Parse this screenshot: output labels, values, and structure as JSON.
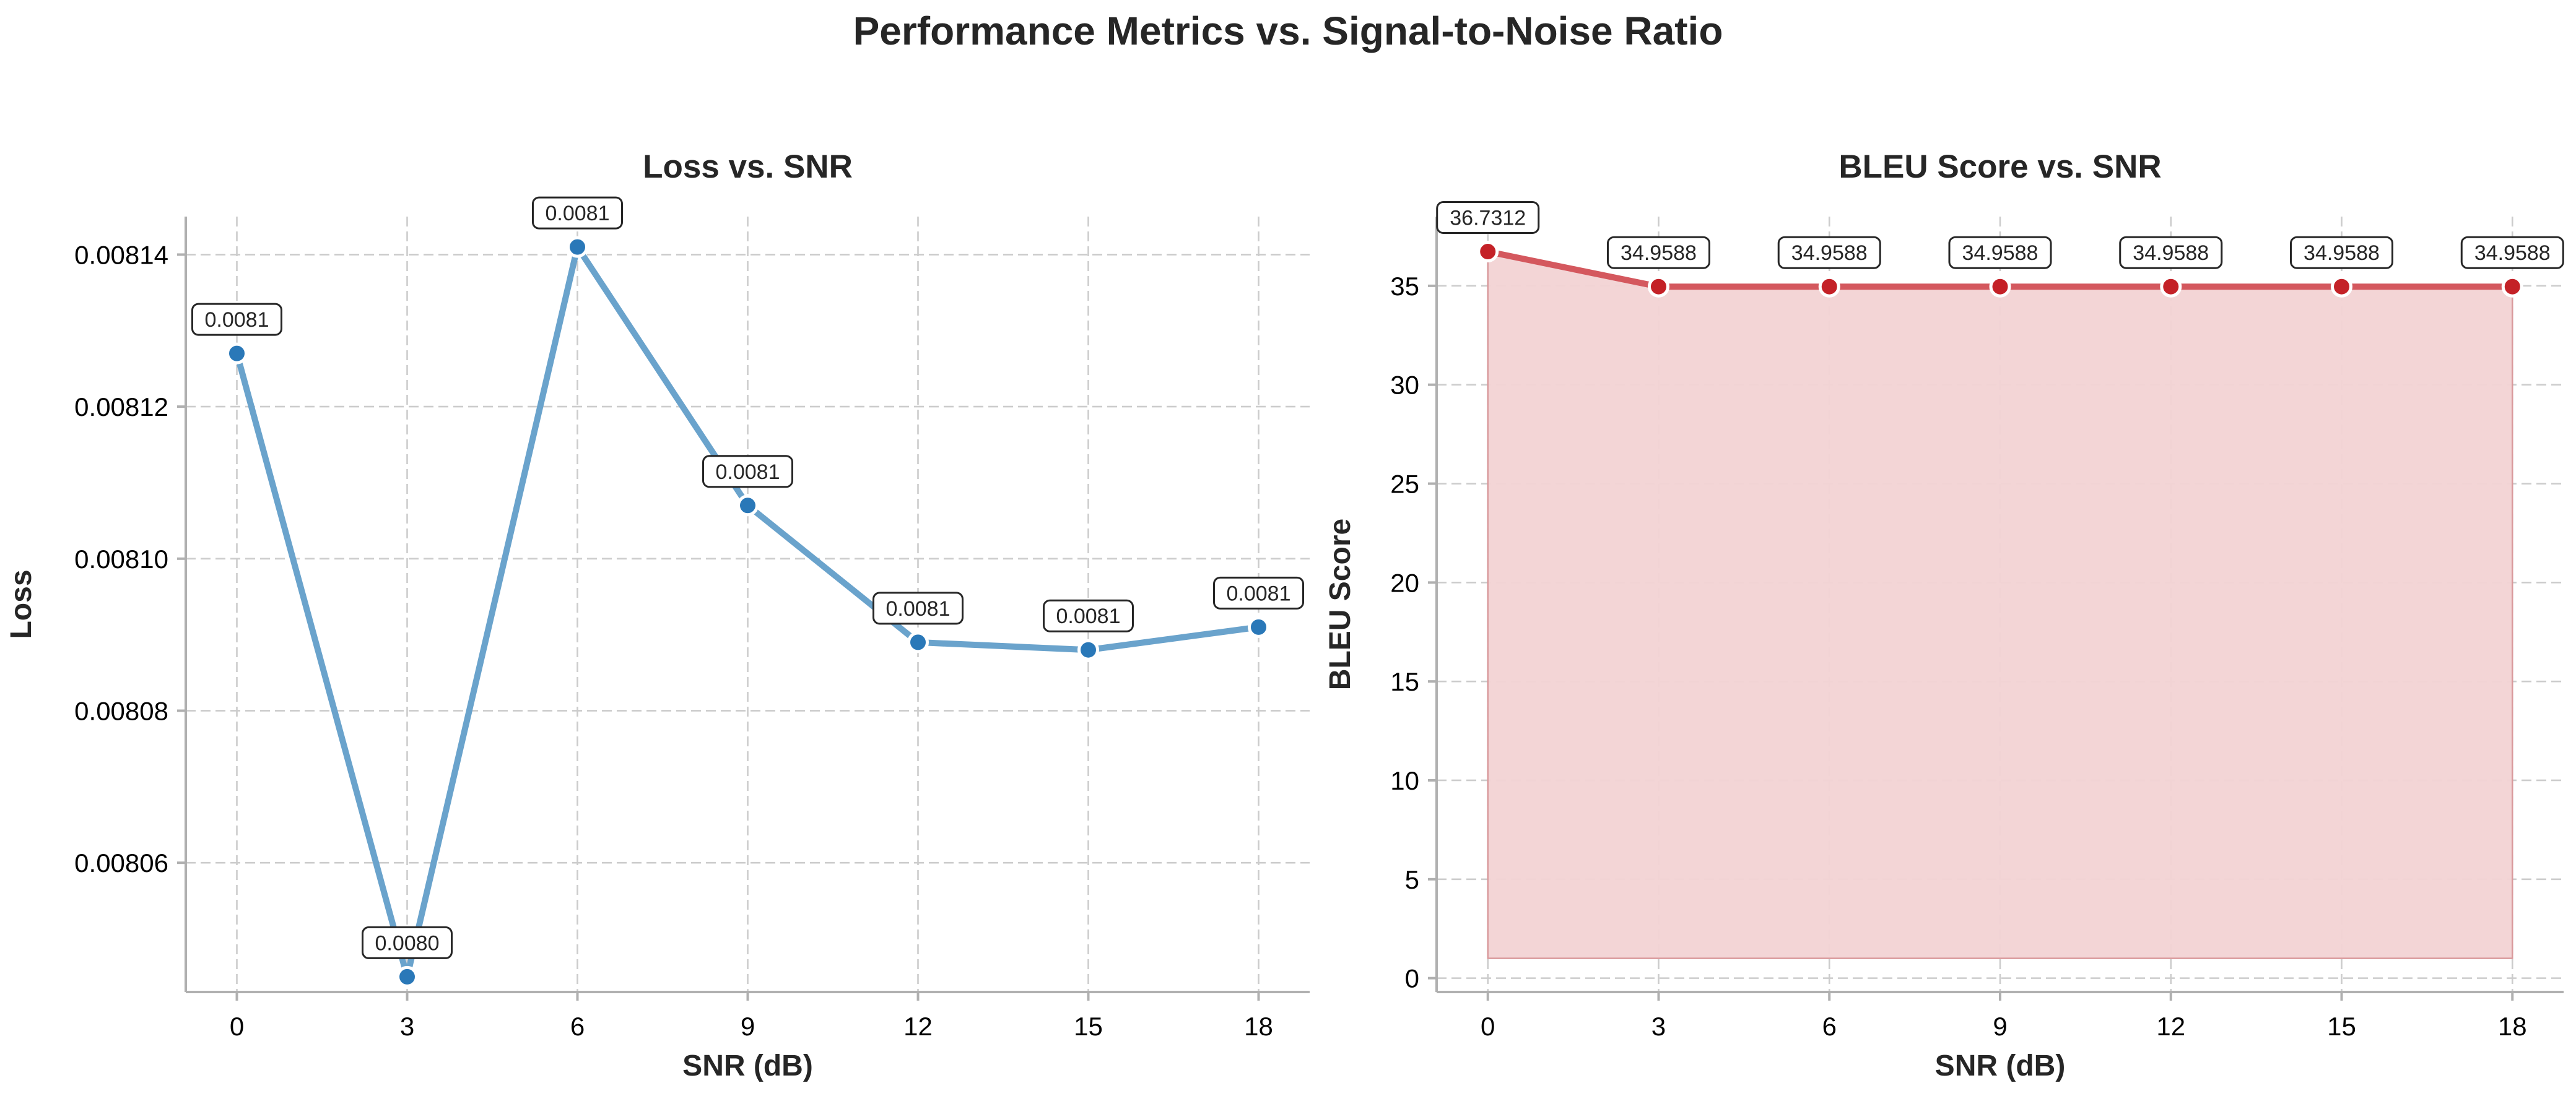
{
  "figure": {
    "title": "Performance Metrics vs. Signal-to-Noise Ratio"
  },
  "chart_data": [
    {
      "type": "line",
      "title": "Loss vs. SNR",
      "xlabel": "SNR (dB)",
      "ylabel": "Loss",
      "x": [
        0,
        3,
        6,
        9,
        12,
        15,
        18
      ],
      "xticks": [
        0,
        3,
        6,
        9,
        12,
        15,
        18
      ],
      "xlim": [
        -0.9,
        18.9
      ],
      "ylim": [
        0.008043,
        0.008145
      ],
      "yticks": [
        0.00806,
        0.00808,
        0.0081,
        0.00812,
        0.00814
      ],
      "ytick_labels": [
        "0.00806",
        "0.00808",
        "0.00810",
        "0.00812",
        "0.00814"
      ],
      "series": [
        {
          "values": [
            0.008127,
            0.008045,
            0.008141,
            0.008107,
            0.008089,
            0.008088,
            0.008091
          ],
          "annotations": [
            "0.0081",
            "0.0080",
            "0.0081",
            "0.0081",
            "0.0081",
            "0.0081",
            "0.0081"
          ],
          "line_color": "#6aa3cc",
          "marker_color": "#2a78b8",
          "fill": false
        }
      ],
      "grid": true
    },
    {
      "type": "area",
      "title": "BLEU Score vs. SNR",
      "xlabel": "SNR (dB)",
      "ylabel": "BLEU Score",
      "x": [
        0,
        3,
        6,
        9,
        12,
        15,
        18
      ],
      "xticks": [
        0,
        3,
        6,
        9,
        12,
        15,
        18
      ],
      "xlim": [
        -0.9,
        18.9
      ],
      "ylim": [
        -0.7,
        38.5
      ],
      "yticks": [
        0,
        5,
        10,
        15,
        20,
        25,
        30,
        35
      ],
      "ytick_labels": [
        "0",
        "5",
        "10",
        "15",
        "20",
        "25",
        "30",
        "35"
      ],
      "series": [
        {
          "values": [
            36.7312,
            34.9588,
            34.9588,
            34.9588,
            34.9588,
            34.9588,
            34.9588
          ],
          "annotations": [
            "36.7312",
            "34.9588",
            "34.9588",
            "34.9588",
            "34.9588",
            "34.9588",
            "34.9588"
          ],
          "line_color": "#d4585e",
          "marker_color": "#c42127",
          "fill": true,
          "fill_color": "#f2d3d4",
          "fill_base": 1
        }
      ],
      "grid": true
    }
  ]
}
